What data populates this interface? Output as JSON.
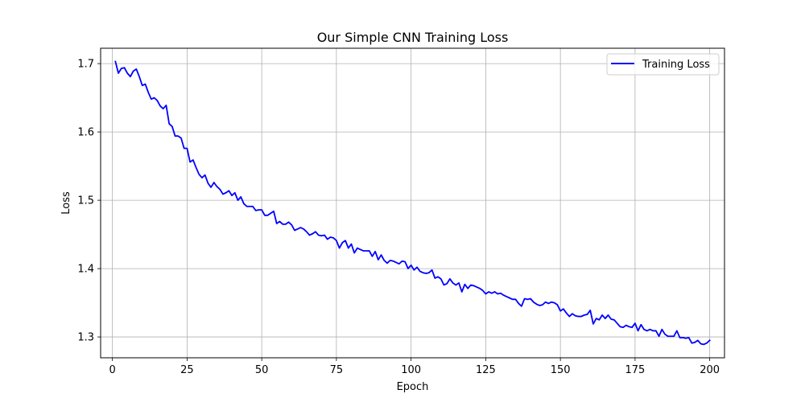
{
  "chart_data": {
    "type": "line",
    "title": "Our Simple CNN Training Loss",
    "xlabel": "Epoch",
    "ylabel": "Loss",
    "xlim": [
      -3.95,
      204.95
    ],
    "ylim": [
      1.2695,
      1.7225
    ],
    "xticks": [
      0,
      25,
      50,
      75,
      100,
      125,
      150,
      175,
      200
    ],
    "yticks": [
      1.3,
      1.4,
      1.5,
      1.6,
      1.7
    ],
    "ytick_labels": [
      "1.3",
      "1.4",
      "1.5",
      "1.6",
      "1.7"
    ],
    "grid": true,
    "legend": "top-right",
    "series": [
      {
        "name": "Training Loss",
        "color": "#0000ff",
        "x_start": 1,
        "x_step": 1,
        "values": [
          1.703,
          1.686,
          1.693,
          1.694,
          1.686,
          1.681,
          1.689,
          1.692,
          1.681,
          1.668,
          1.67,
          1.658,
          1.648,
          1.65,
          1.646,
          1.638,
          1.634,
          1.639,
          1.612,
          1.608,
          1.594,
          1.594,
          1.591,
          1.576,
          1.576,
          1.556,
          1.559,
          1.548,
          1.538,
          1.533,
          1.537,
          1.525,
          1.519,
          1.526,
          1.52,
          1.516,
          1.509,
          1.511,
          1.514,
          1.507,
          1.511,
          1.5,
          1.505,
          1.495,
          1.491,
          1.491,
          1.491,
          1.485,
          1.486,
          1.486,
          1.478,
          1.478,
          1.481,
          1.484,
          1.466,
          1.469,
          1.465,
          1.465,
          1.468,
          1.464,
          1.456,
          1.458,
          1.46,
          1.458,
          1.454,
          1.449,
          1.451,
          1.454,
          1.449,
          1.448,
          1.449,
          1.443,
          1.446,
          1.445,
          1.441,
          1.43,
          1.438,
          1.441,
          1.43,
          1.436,
          1.423,
          1.43,
          1.428,
          1.426,
          1.426,
          1.426,
          1.418,
          1.425,
          1.413,
          1.42,
          1.412,
          1.408,
          1.412,
          1.411,
          1.409,
          1.407,
          1.411,
          1.41,
          1.4,
          1.405,
          1.398,
          1.402,
          1.396,
          1.394,
          1.393,
          1.394,
          1.398,
          1.386,
          1.388,
          1.385,
          1.376,
          1.378,
          1.385,
          1.379,
          1.376,
          1.379,
          1.366,
          1.377,
          1.371,
          1.376,
          1.375,
          1.373,
          1.371,
          1.368,
          1.363,
          1.366,
          1.364,
          1.366,
          1.363,
          1.364,
          1.361,
          1.359,
          1.357,
          1.355,
          1.355,
          1.349,
          1.345,
          1.356,
          1.355,
          1.356,
          1.351,
          1.348,
          1.346,
          1.347,
          1.351,
          1.349,
          1.351,
          1.35,
          1.347,
          1.338,
          1.341,
          1.335,
          1.33,
          1.334,
          1.331,
          1.33,
          1.33,
          1.332,
          1.333,
          1.339,
          1.319,
          1.327,
          1.325,
          1.332,
          1.327,
          1.332,
          1.326,
          1.325,
          1.32,
          1.315,
          1.314,
          1.317,
          1.315,
          1.314,
          1.32,
          1.309,
          1.318,
          1.311,
          1.309,
          1.311,
          1.309,
          1.309,
          1.301,
          1.311,
          1.304,
          1.301,
          1.301,
          1.301,
          1.309,
          1.299,
          1.299,
          1.298,
          1.299,
          1.291,
          1.292,
          1.295,
          1.29,
          1.289,
          1.291,
          1.295
        ]
      }
    ]
  }
}
